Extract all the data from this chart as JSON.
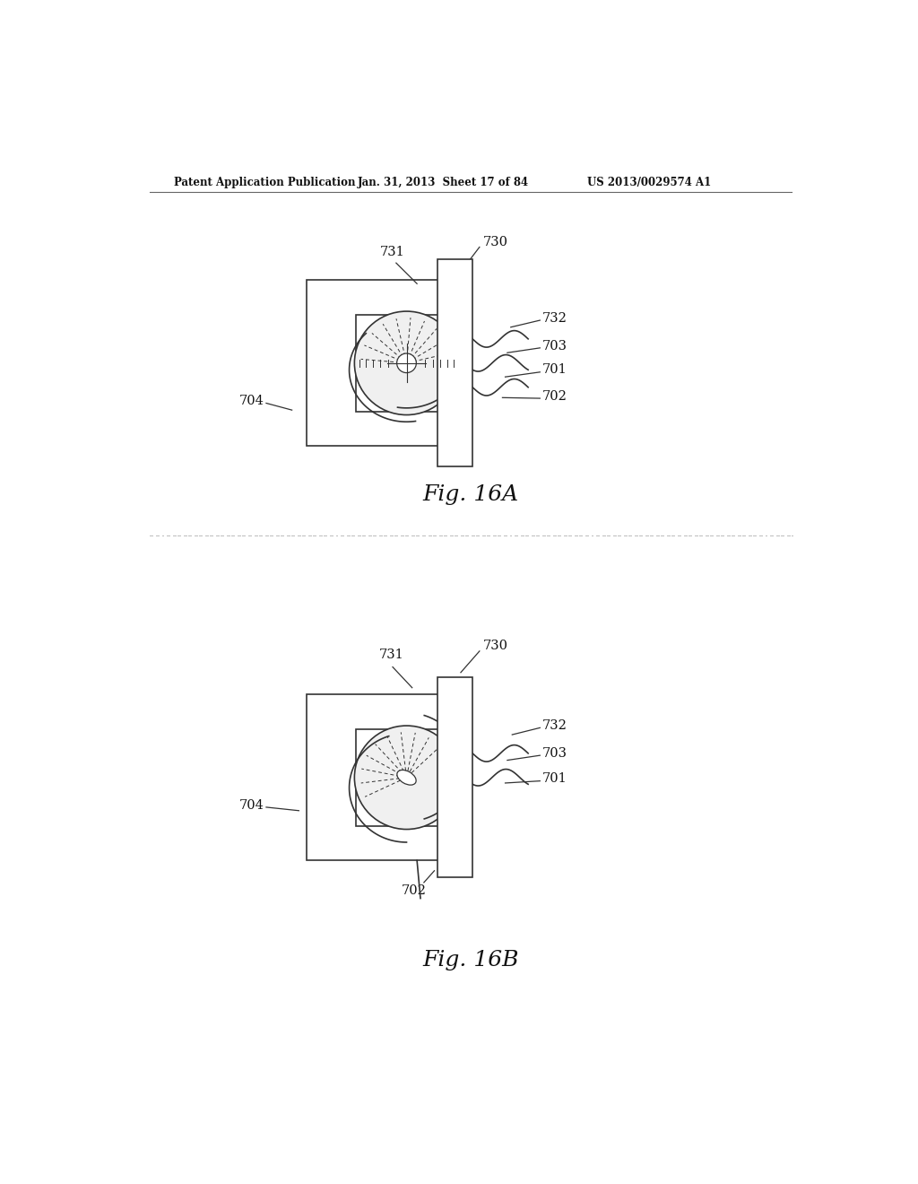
{
  "bg_color": "#ffffff",
  "header_left": "Patent Application Publication",
  "header_mid": "Jan. 31, 2013  Sheet 17 of 84",
  "header_right": "US 2013/0029574 A1",
  "fig_a_label": "Fig. 16A",
  "fig_b_label": "Fig. 16B",
  "line_color": "#333333",
  "lw": 1.2
}
